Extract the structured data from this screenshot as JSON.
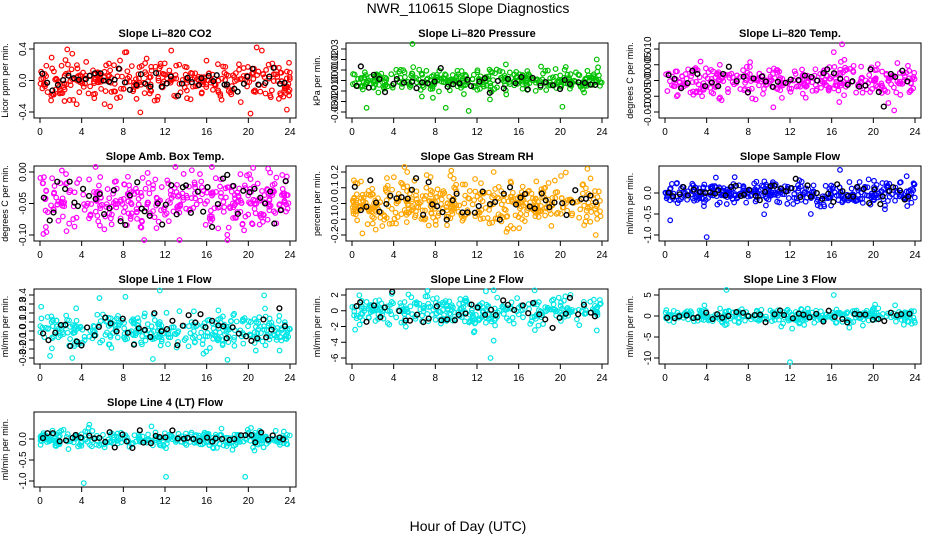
{
  "figure": {
    "title": "NWR_110615  Slope Diagnostics",
    "xlabel": "Hour of Day (UTC)"
  },
  "chart_data": [
    {
      "type": "scatter",
      "title": "Slope Li–820 CO2",
      "ylabel": "Licor ppm per min.",
      "color": "#ff0000",
      "xlim": [
        0,
        24
      ],
      "x_ticks": [
        0,
        4,
        8,
        12,
        16,
        20,
        24
      ],
      "ylim": [
        -0.4,
        0.4
      ],
      "y_ticks": [
        -0.4,
        0.0,
        0.4
      ],
      "y_tick_labels": [
        "-0.4",
        "0.0",
        "0.4"
      ],
      "cloud": {
        "center": 0.0,
        "spread": 0.12,
        "n": 340
      },
      "outliers": [
        [
          3.1,
          0.34
        ],
        [
          8.3,
          0.36
        ],
        [
          12.6,
          0.38
        ],
        [
          20.8,
          0.42
        ],
        [
          21.3,
          0.38
        ],
        [
          23.7,
          -0.37
        ],
        [
          6.2,
          -0.3
        ]
      ],
      "highlight": {
        "color": "#000000",
        "spread": 0.07,
        "n": 48
      }
    },
    {
      "type": "scatter",
      "title": "Slope Li–820 Pressure",
      "ylabel": "kPa per min.",
      "color": "#00c000",
      "xlim": [
        0,
        24
      ],
      "x_ticks": [
        0,
        4,
        8,
        12,
        16,
        20,
        24
      ],
      "ylim": [
        -0.03,
        0.03
      ],
      "y_ticks": [
        -0.03,
        -0.02,
        -0.01,
        0.0,
        0.01,
        0.02,
        0.03
      ],
      "y_tick_labels": [
        "-0.03",
        "-0.02",
        "-0.01",
        "0.00",
        "0.01",
        "0.02",
        "0.03"
      ],
      "cloud": {
        "center": 0.0,
        "spread": 0.006,
        "n": 340
      },
      "outliers": [
        [
          5.8,
          0.036
        ],
        [
          1.4,
          -0.026
        ],
        [
          9.0,
          -0.026
        ],
        [
          11.2,
          -0.029
        ],
        [
          20.2,
          -0.025
        ],
        [
          23.5,
          0.02
        ]
      ],
      "highlight": {
        "color": "#000000",
        "spread": 0.005,
        "n": 40
      }
    },
    {
      "type": "scatter",
      "title": "Slope Li–820 Temp.",
      "ylabel": "degrees C per min.",
      "color": "#ff00ff",
      "xlim": [
        0,
        24
      ],
      "x_ticks": [
        0,
        4,
        8,
        12,
        16,
        20,
        24
      ],
      "ylim": [
        -0.01,
        0.01
      ],
      "y_ticks": [
        -0.01,
        -0.005,
        0.0,
        0.005,
        0.01
      ],
      "y_tick_labels": [
        "-0.010",
        "-0.005",
        "0.000",
        "0.005",
        "0.010"
      ],
      "cloud": {
        "center": 0.0,
        "spread": 0.0025,
        "n": 340
      },
      "outliers": [
        [
          8.7,
          -0.006
        ],
        [
          10.4,
          -0.0085
        ],
        [
          17.0,
          0.0115
        ],
        [
          22.0,
          -0.0095
        ],
        [
          16.2,
          0.009
        ]
      ],
      "highlight": {
        "color": "#000000",
        "spread": 0.0025,
        "n": 40
      }
    },
    {
      "type": "scatter",
      "title": "Slope Amb. Box Temp.",
      "ylabel": "degrees C per min.",
      "color": "#ff00ff",
      "xlim": [
        0,
        24
      ],
      "x_ticks": [
        0,
        4,
        8,
        12,
        16,
        20,
        24
      ],
      "ylim": [
        -0.1,
        0.0
      ],
      "y_ticks": [
        -0.1,
        -0.05,
        0.0
      ],
      "y_tick_labels": [
        "-0.10",
        "-0.05",
        "0.00"
      ],
      "cloud": {
        "center": -0.047,
        "spread": 0.022,
        "n": 360
      },
      "outliers": [
        [
          13.0,
          0.02
        ],
        [
          16.5,
          0.018
        ],
        [
          10.0,
          -0.115
        ],
        [
          13.4,
          -0.12
        ],
        [
          18.0,
          -0.112
        ]
      ],
      "highlight": {
        "color": "#000000",
        "spread": 0.02,
        "n": 48
      }
    },
    {
      "type": "scatter",
      "title": "Slope Gas Stream RH",
      "ylabel": "percent per min.",
      "color": "#ffa500",
      "xlim": [
        0,
        24
      ],
      "x_ticks": [
        0,
        4,
        8,
        12,
        16,
        20,
        24
      ],
      "ylim": [
        -0.2,
        0.2
      ],
      "y_ticks": [
        -0.2,
        -0.1,
        0.0,
        0.1,
        0.2
      ],
      "y_tick_labels": [
        "-0.2",
        "-0.1",
        "0.0",
        "0.1",
        "0.2"
      ],
      "cloud": {
        "center": 0.0,
        "spread": 0.075,
        "n": 420
      },
      "outliers": [
        [
          5.3,
          0.2
        ],
        [
          13.6,
          0.2
        ],
        [
          22.6,
          0.22
        ],
        [
          1.0,
          -0.19
        ],
        [
          23.4,
          -0.2
        ]
      ],
      "highlight": {
        "color": "#000000",
        "spread": 0.06,
        "n": 48
      }
    },
    {
      "type": "scatter",
      "title": "Slope Sample Flow",
      "ylabel": "ml/min per min.",
      "color": "#0000ff",
      "xlim": [
        0,
        24
      ],
      "x_ticks": [
        0,
        4,
        8,
        12,
        16,
        20,
        24
      ],
      "ylim": [
        -1.0,
        0.5
      ],
      "y_ticks": [
        -1.0,
        -0.5,
        0.0
      ],
      "y_tick_labels": [
        "-1.0",
        "-0.5",
        "0.0"
      ],
      "cloud": {
        "center": 0.0,
        "spread": 0.14,
        "n": 360
      },
      "outliers": [
        [
          4.0,
          -1.05
        ],
        [
          0.5,
          -0.65
        ],
        [
          14.0,
          -0.5
        ],
        [
          16.8,
          0.55
        ],
        [
          23.2,
          0.4
        ]
      ],
      "highlight": {
        "color": "#000000",
        "spread": 0.12,
        "n": 48
      }
    },
    {
      "type": "scatter",
      "title": "Slope Line 1 Flow",
      "ylabel": "ml/min per min.",
      "color": "#00e5e5",
      "xlim": [
        0,
        24
      ],
      "x_ticks": [
        0,
        4,
        8,
        12,
        16,
        20,
        24
      ],
      "ylim": [
        -0.3,
        0.4
      ],
      "y_ticks": [
        -0.3,
        -0.2,
        -0.1,
        0.0,
        0.1,
        0.2,
        0.3,
        0.4
      ],
      "y_tick_labels": [
        "-0.3",
        "-0.2",
        "-0.1",
        "0.0",
        "0.1",
        "0.2",
        "0.3",
        "0.4"
      ],
      "cloud": {
        "center": 0.0,
        "spread": 0.1,
        "n": 340
      },
      "outliers": [
        [
          8.2,
          0.38
        ],
        [
          11.5,
          0.45
        ],
        [
          3.1,
          -0.3
        ],
        [
          18.0,
          -0.32
        ]
      ],
      "highlight": {
        "color": "#000000",
        "spread": 0.09,
        "n": 44
      }
    },
    {
      "type": "scatter",
      "title": "Slope Line 2 Flow",
      "ylabel": "ml/min per min.",
      "color": "#00e5e5",
      "xlim": [
        0,
        24
      ],
      "x_ticks": [
        0,
        4,
        8,
        12,
        16,
        20,
        24
      ],
      "ylim": [
        -6,
        2
      ],
      "y_ticks": [
        -6,
        -4,
        -2,
        0,
        2
      ],
      "y_tick_labels": [
        "-6",
        "-4",
        "-2",
        "0",
        "2"
      ],
      "cloud": {
        "center": 0.0,
        "spread": 0.9,
        "n": 320
      },
      "outliers": [
        [
          13.3,
          -6.0
        ],
        [
          13.6,
          -3.8
        ],
        [
          23.5,
          -2.5
        ],
        [
          0.3,
          -2.4
        ],
        [
          13.6,
          2.6
        ]
      ],
      "highlight": {
        "color": "#000000",
        "spread": 0.8,
        "n": 40
      }
    },
    {
      "type": "scatter",
      "title": "Slope Line 3 Flow",
      "ylabel": "ml/min per min.",
      "color": "#00e5e5",
      "xlim": [
        0,
        24
      ],
      "x_ticks": [
        0,
        4,
        8,
        12,
        16,
        20,
        24
      ],
      "ylim": [
        -10,
        5
      ],
      "y_ticks": [
        -10,
        -5,
        0,
        5
      ],
      "y_tick_labels": [
        "-10",
        "-5",
        "0",
        "5"
      ],
      "cloud": {
        "center": 0.0,
        "spread": 0.9,
        "n": 320
      },
      "outliers": [
        [
          12.0,
          -11.0
        ],
        [
          5.9,
          6.5
        ],
        [
          16.2,
          5.0
        ],
        [
          12.2,
          -3.0
        ]
      ],
      "highlight": {
        "color": "#000000",
        "spread": 0.8,
        "n": 40
      }
    },
    {
      "type": "scatter",
      "title": "Slope Line 4 (LT) Flow",
      "ylabel": "ml/min per min.",
      "color": "#00e5e5",
      "xlim": [
        0,
        24
      ],
      "x_ticks": [
        0,
        4,
        8,
        12,
        16,
        20,
        24
      ],
      "ylim": [
        -1.0,
        0.5
      ],
      "y_ticks": [
        -1.0,
        -0.5,
        0.0
      ],
      "y_tick_labels": [
        "-1.0",
        "-0.5",
        "0.0"
      ],
      "cloud": {
        "center": 0.0,
        "spread": 0.1,
        "n": 320
      },
      "outliers": [
        [
          4.2,
          -1.05
        ],
        [
          12.1,
          -0.9
        ],
        [
          19.7,
          -0.9
        ],
        [
          10.7,
          0.3
        ],
        [
          1.2,
          0.2
        ]
      ],
      "highlight": {
        "color": "#000000",
        "spread": 0.09,
        "n": 44
      }
    }
  ]
}
